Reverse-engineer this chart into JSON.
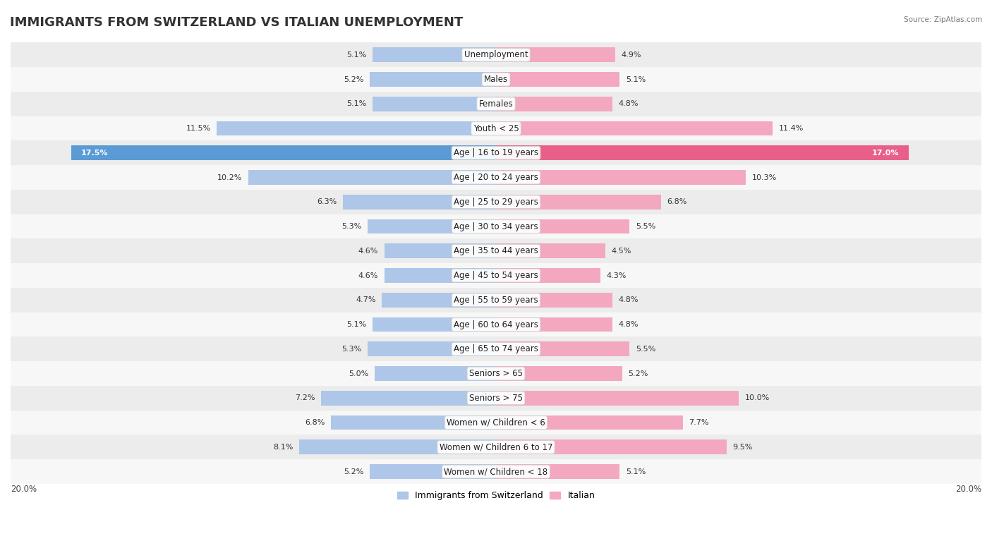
{
  "title": "IMMIGRANTS FROM SWITZERLAND VS ITALIAN UNEMPLOYMENT",
  "source": "Source: ZipAtlas.com",
  "categories": [
    "Unemployment",
    "Males",
    "Females",
    "Youth < 25",
    "Age | 16 to 19 years",
    "Age | 20 to 24 years",
    "Age | 25 to 29 years",
    "Age | 30 to 34 years",
    "Age | 35 to 44 years",
    "Age | 45 to 54 years",
    "Age | 55 to 59 years",
    "Age | 60 to 64 years",
    "Age | 65 to 74 years",
    "Seniors > 65",
    "Seniors > 75",
    "Women w/ Children < 6",
    "Women w/ Children 6 to 17",
    "Women w/ Children < 18"
  ],
  "left_values": [
    5.1,
    5.2,
    5.1,
    11.5,
    17.5,
    10.2,
    6.3,
    5.3,
    4.6,
    4.6,
    4.7,
    5.1,
    5.3,
    5.0,
    7.2,
    6.8,
    8.1,
    5.2
  ],
  "right_values": [
    4.9,
    5.1,
    4.8,
    11.4,
    17.0,
    10.3,
    6.8,
    5.5,
    4.5,
    4.3,
    4.8,
    4.8,
    5.5,
    5.2,
    10.0,
    7.7,
    9.5,
    5.1
  ],
  "left_color_normal": "#aec6e8",
  "left_color_highlight": "#5b9bd5",
  "right_color_normal": "#f4a8c0",
  "right_color_highlight": "#e8608a",
  "axis_limit": 20.0,
  "legend_left": "Immigrants from Switzerland",
  "legend_right": "Italian",
  "bar_height": 0.6,
  "title_fontsize": 13,
  "label_fontsize": 8.5,
  "value_fontsize": 8,
  "row_colors": [
    "#f7f7f7",
    "#ececec"
  ]
}
